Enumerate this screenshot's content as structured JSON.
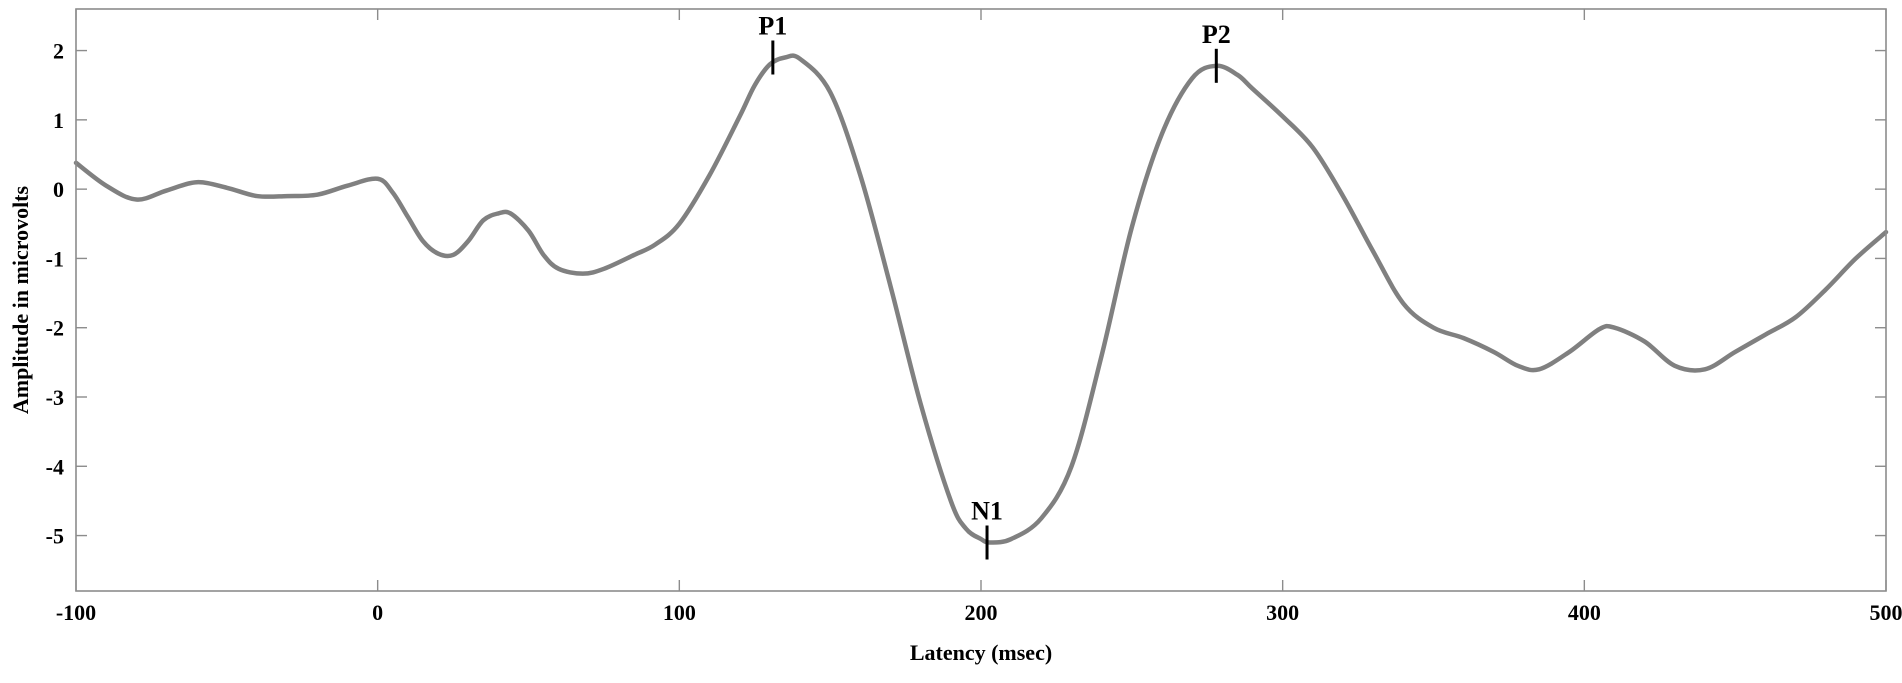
{
  "chart_data": {
    "type": "line",
    "title": "",
    "xlabel": "Latency (msec)",
    "ylabel": "Amplitude in microvolts",
    "xlim": [
      -100,
      500
    ],
    "ylim": [
      -5.8,
      2.6
    ],
    "xticks": [
      -100,
      0,
      100,
      200,
      300,
      400,
      500
    ],
    "xtick_labels": [
      "-100",
      "0",
      "100",
      "200",
      "300",
      "400",
      "500"
    ],
    "yticks": [
      2,
      1,
      0,
      -1,
      -2,
      -3,
      -4,
      -5
    ],
    "ytick_labels": [
      "2",
      "1",
      "0",
      "-1",
      "-2",
      "-3",
      "-4",
      "-5"
    ],
    "grid": false,
    "line_color": "#808080",
    "series": [
      {
        "x": [
          -100,
          -90,
          -80,
          -70,
          -60,
          -50,
          -40,
          -30,
          -20,
          -10,
          0,
          5,
          10,
          15,
          20,
          25,
          30,
          35,
          40,
          44,
          50,
          55,
          60,
          68,
          75,
          85,
          92,
          100,
          110,
          120,
          125,
          130,
          135,
          140,
          150,
          160,
          170,
          180,
          190,
          195,
          200,
          203,
          210,
          220,
          230,
          240,
          250,
          260,
          270,
          278,
          285,
          290,
          300,
          310,
          320,
          330,
          340,
          350,
          360,
          370,
          378,
          385,
          395,
          405,
          410,
          420,
          430,
          440,
          450,
          460,
          470,
          480,
          490,
          500
        ],
        "y": [
          0.38,
          0.05,
          -0.15,
          -0.02,
          0.1,
          0.02,
          -0.1,
          -0.1,
          -0.08,
          0.05,
          0.15,
          -0.05,
          -0.4,
          -0.75,
          -0.93,
          -0.95,
          -0.75,
          -0.45,
          -0.35,
          -0.35,
          -0.6,
          -0.95,
          -1.15,
          -1.22,
          -1.15,
          -0.95,
          -0.8,
          -0.5,
          0.2,
          1.05,
          1.5,
          1.8,
          1.9,
          1.88,
          1.4,
          0.2,
          -1.4,
          -3.1,
          -4.5,
          -4.9,
          -5.05,
          -5.1,
          -5.05,
          -4.75,
          -4.0,
          -2.4,
          -0.55,
          0.8,
          1.6,
          1.78,
          1.65,
          1.45,
          1.05,
          0.6,
          -0.1,
          -0.9,
          -1.65,
          -2.0,
          -2.15,
          -2.35,
          -2.55,
          -2.6,
          -2.35,
          -2.02,
          -2.0,
          -2.2,
          -2.55,
          -2.6,
          -2.35,
          -2.1,
          -1.85,
          -1.45,
          -1.0,
          -0.62
        ]
      }
    ],
    "annotations": [
      {
        "label": "P1",
        "x": 131,
        "y": 1.9
      },
      {
        "label": "N1",
        "x": 202,
        "y": -5.1
      },
      {
        "label": "P2",
        "x": 278,
        "y": 1.78
      }
    ]
  }
}
